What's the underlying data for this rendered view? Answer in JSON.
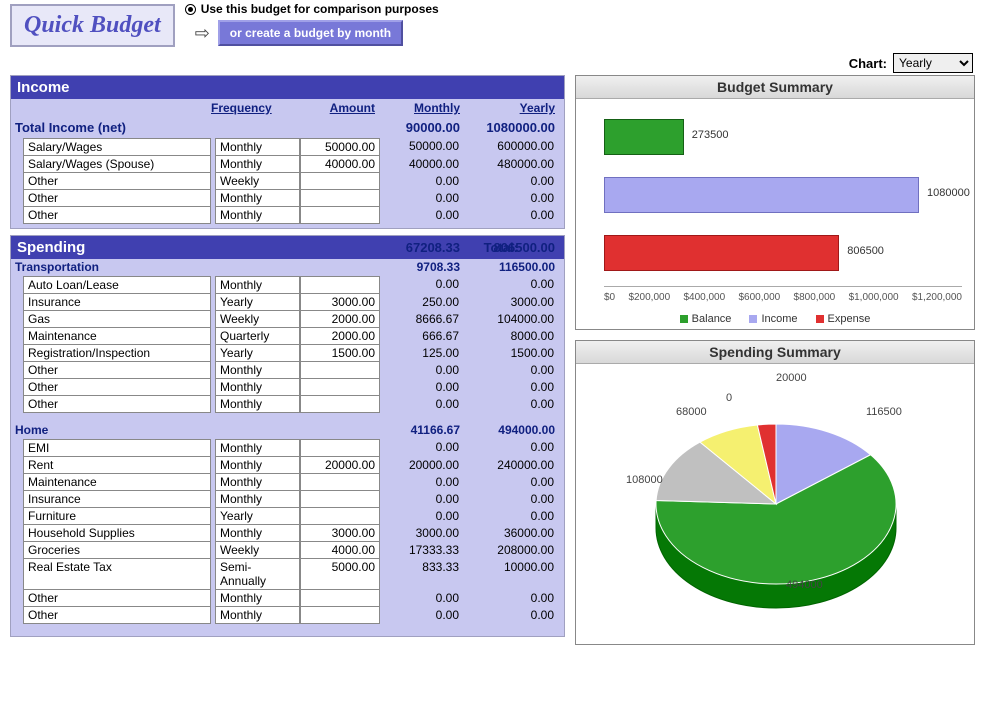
{
  "title": "Quick Budget",
  "radio_label": "Use this budget for comparison purposes",
  "month_button": "or create a budget by month",
  "chart_label": "Chart:",
  "chart_select_options": [
    "Yearly",
    "Monthly"
  ],
  "chart_select_value": "Yearly",
  "columns": {
    "freq": "Frequency",
    "amt": "Amount",
    "mon": "Monthly",
    "yr": "Yearly"
  },
  "income": {
    "header": "Income",
    "total_label": "Total Income (net)",
    "total_monthly": "90000.00",
    "total_yearly": "1080000.00",
    "rows": [
      {
        "name": "Salary/Wages",
        "freq": "Monthly",
        "amt": "50000.00",
        "mon": "50000.00",
        "yr": "600000.00"
      },
      {
        "name": "Salary/Wages (Spouse)",
        "freq": "Monthly",
        "amt": "40000.00",
        "mon": "40000.00",
        "yr": "480000.00"
      },
      {
        "name": "Other",
        "freq": "Weekly",
        "amt": "",
        "mon": "0.00",
        "yr": "0.00"
      },
      {
        "name": "Other",
        "freq": "Monthly",
        "amt": "",
        "mon": "0.00",
        "yr": "0.00"
      },
      {
        "name": "Other",
        "freq": "Monthly",
        "amt": "",
        "mon": "0.00",
        "yr": "0.00"
      }
    ]
  },
  "spending": {
    "header": "Spending",
    "total_label": "Total:",
    "total_monthly": "67208.33",
    "total_yearly": "806500.00",
    "groups": [
      {
        "name": "Transportation",
        "mon": "9708.33",
        "yr": "116500.00",
        "rows": [
          {
            "name": "Auto Loan/Lease",
            "freq": "Monthly",
            "amt": "",
            "mon": "0.00",
            "yr": "0.00"
          },
          {
            "name": "Insurance",
            "freq": "Yearly",
            "amt": "3000.00",
            "mon": "250.00",
            "yr": "3000.00"
          },
          {
            "name": "Gas",
            "freq": "Weekly",
            "amt": "2000.00",
            "mon": "8666.67",
            "yr": "104000.00"
          },
          {
            "name": "Maintenance",
            "freq": "Quarterly",
            "amt": "2000.00",
            "mon": "666.67",
            "yr": "8000.00"
          },
          {
            "name": "Registration/Inspection",
            "freq": "Yearly",
            "amt": "1500.00",
            "mon": "125.00",
            "yr": "1500.00"
          },
          {
            "name": "Other",
            "freq": "Monthly",
            "amt": "",
            "mon": "0.00",
            "yr": "0.00"
          },
          {
            "name": "Other",
            "freq": "Monthly",
            "amt": "",
            "mon": "0.00",
            "yr": "0.00"
          },
          {
            "name": "Other",
            "freq": "Monthly",
            "amt": "",
            "mon": "0.00",
            "yr": "0.00"
          }
        ]
      },
      {
        "name": "Home",
        "mon": "41166.67",
        "yr": "494000.00",
        "rows": [
          {
            "name": "EMI",
            "freq": "Monthly",
            "amt": "",
            "mon": "0.00",
            "yr": "0.00"
          },
          {
            "name": "Rent",
            "freq": "Monthly",
            "amt": "20000.00",
            "mon": "20000.00",
            "yr": "240000.00"
          },
          {
            "name": "Maintenance",
            "freq": "Monthly",
            "amt": "",
            "mon": "0.00",
            "yr": "0.00"
          },
          {
            "name": "Insurance",
            "freq": "Monthly",
            "amt": "",
            "mon": "0.00",
            "yr": "0.00"
          },
          {
            "name": "Furniture",
            "freq": "Yearly",
            "amt": "",
            "mon": "0.00",
            "yr": "0.00"
          },
          {
            "name": "Household Supplies",
            "freq": "Monthly",
            "amt": "3000.00",
            "mon": "3000.00",
            "yr": "36000.00"
          },
          {
            "name": "Groceries",
            "freq": "Weekly",
            "amt": "4000.00",
            "mon": "17333.33",
            "yr": "208000.00"
          },
          {
            "name": "Real Estate Tax",
            "freq": "Semi-Annually",
            "amt": "5000.00",
            "mon": "833.33",
            "yr": "10000.00"
          },
          {
            "name": "Other",
            "freq": "Monthly",
            "amt": "",
            "mon": "0.00",
            "yr": "0.00"
          },
          {
            "name": "Other",
            "freq": "Monthly",
            "amt": "",
            "mon": "0.00",
            "yr": "0.00"
          }
        ]
      }
    ]
  },
  "budget_chart": {
    "title": "Budget Summary",
    "type": "bar-horizontal",
    "xmax": 1200000,
    "xticks": [
      "$0",
      "$200,000",
      "$400,000",
      "$600,000",
      "$800,000",
      "$1,000,000",
      "$1,200,000"
    ],
    "bars": [
      {
        "label": "273500",
        "value": 273500,
        "color": "#2da02d",
        "border": "#156015"
      },
      {
        "label": "1080000",
        "value": 1080000,
        "color": "#a8a8f0",
        "border": "#7070c0"
      },
      {
        "label": "806500",
        "value": 806500,
        "color": "#e03030",
        "border": "#a01818"
      }
    ],
    "legend": [
      {
        "label": "Balance",
        "color": "#2da02d"
      },
      {
        "label": "Income",
        "color": "#a8a8f0"
      },
      {
        "label": "Expense",
        "color": "#e03030"
      }
    ]
  },
  "spending_chart": {
    "title": "Spending Summary",
    "type": "pie-3d",
    "slices": [
      {
        "label": "116500",
        "value": 116500,
        "color": "#a8a8f0"
      },
      {
        "label": "494000",
        "value": 494000,
        "color": "#2da02d"
      },
      {
        "label": "108000",
        "value": 108000,
        "color": "#c0c0c0"
      },
      {
        "label": "68000",
        "value": 68000,
        "color": "#f5f070"
      },
      {
        "label": "0",
        "value": 0,
        "color": "#888"
      },
      {
        "label": "20000",
        "value": 20000,
        "color": "#e03030"
      }
    ]
  },
  "colors": {
    "panel_bg": "#c8c8f0",
    "hdr_bg": "#4040b0",
    "link": "#102080"
  }
}
